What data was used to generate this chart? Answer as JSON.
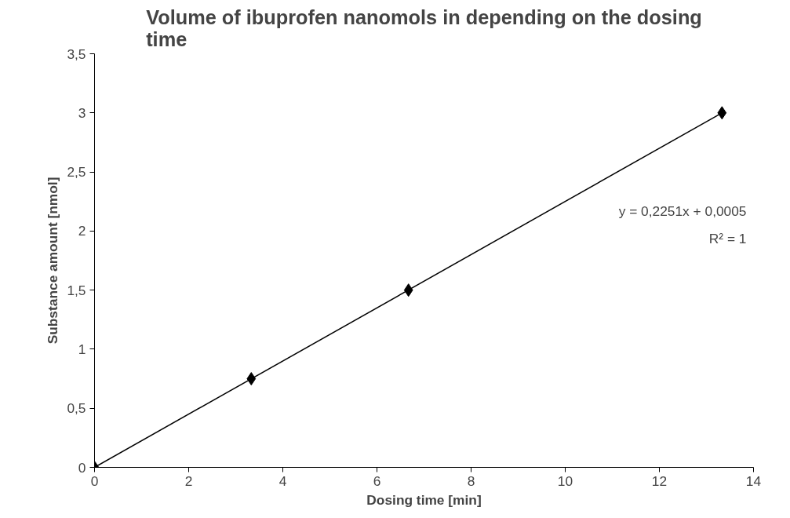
{
  "chart_data": {
    "type": "scatter",
    "title": "Volume of ibuprofen nanomols in depending on the dosing time",
    "xlabel": "Dosing time [min]",
    "ylabel": "Substance amount [nmol]",
    "x": [
      0,
      3.33,
      6.67,
      13.33
    ],
    "series": [
      {
        "color": "#000000",
        "marker": "diamond",
        "values": [
          0,
          0.75,
          1.5,
          3
        ]
      },
      {
        "type": "line",
        "color": "#000000",
        "marker": "none",
        "x": [
          0,
          13.33
        ],
        "values": [
          0,
          3.0
        ]
      }
    ],
    "annotations": [
      "y = 0,2251x + 0,0005",
      "R² = 1"
    ],
    "xlim": [
      0,
      14
    ],
    "xticks": [
      0,
      2,
      4,
      6,
      8,
      10,
      12,
      14
    ],
    "ylim": [
      0,
      3.5
    ],
    "yticks": [
      0,
      {
        "value": 0.5,
        "label": "0,5"
      },
      1,
      {
        "value": 1.5,
        "label": "1,5"
      },
      2,
      {
        "value": 2.5,
        "label": "2,5"
      },
      3,
      {
        "value": 3.5,
        "label": "3,5"
      }
    ],
    "grid": false
  }
}
